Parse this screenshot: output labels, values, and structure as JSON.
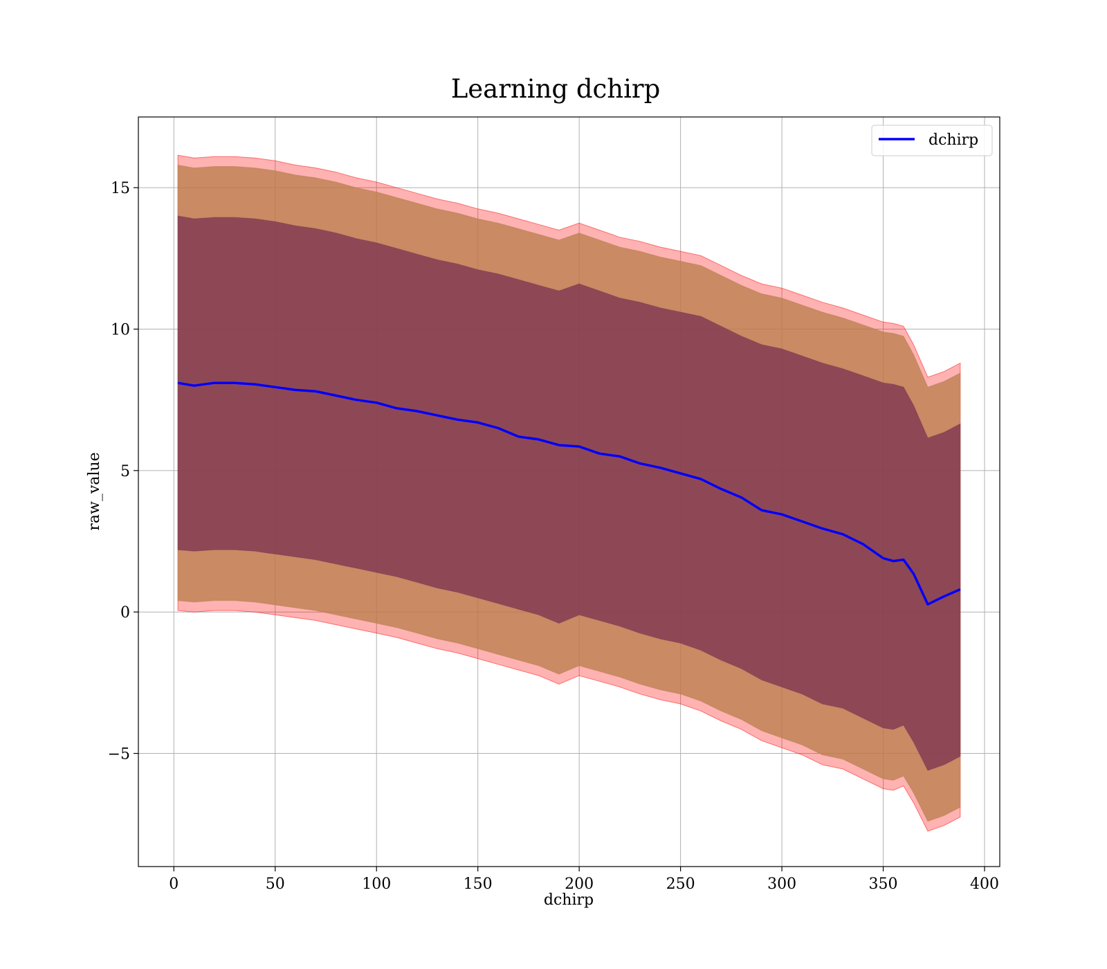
{
  "chart_data": {
    "type": "line",
    "title": "Learning dchirp",
    "xlabel": "dchirp",
    "ylabel": "raw_value",
    "xlim": [
      -17.5,
      407.5
    ],
    "ylim": [
      -9,
      17.5
    ],
    "xticks": [
      0,
      50,
      100,
      150,
      200,
      250,
      300,
      350,
      400
    ],
    "xtick_labels": [
      "0",
      "50",
      "100",
      "150",
      "200",
      "250",
      "300",
      "350",
      "400"
    ],
    "yticks": [
      -5,
      0,
      5,
      10,
      15
    ],
    "ytick_labels": [
      "−5",
      "0",
      "5",
      "10",
      "15"
    ],
    "grid": true,
    "legend": {
      "position": "top-right",
      "entries": [
        "dchirp"
      ]
    },
    "colors": {
      "mean_line": "#0000ff",
      "band_3sigma": "#ff0000",
      "band_2sigma": "#bc7f50",
      "band_1sigma": "#7a3150"
    },
    "series": [
      {
        "name": "dchirp",
        "x": [
          2,
          10,
          20,
          30,
          40,
          50,
          60,
          70,
          80,
          90,
          100,
          110,
          120,
          130,
          140,
          150,
          160,
          170,
          180,
          190,
          200,
          210,
          220,
          230,
          240,
          250,
          260,
          270,
          280,
          290,
          300,
          310,
          320,
          330,
          340,
          350,
          355,
          360,
          365,
          372,
          380,
          388
        ],
        "y": [
          8.1,
          8.0,
          8.1,
          8.1,
          8.05,
          7.95,
          7.85,
          7.8,
          7.65,
          7.5,
          7.4,
          7.2,
          7.1,
          6.95,
          6.8,
          6.7,
          6.5,
          6.2,
          6.1,
          5.9,
          5.85,
          5.6,
          5.5,
          5.25,
          5.1,
          4.9,
          4.7,
          4.35,
          4.05,
          3.6,
          3.45,
          3.2,
          2.95,
          2.75,
          2.4,
          1.9,
          1.8,
          1.85,
          1.35,
          0.27,
          0.55,
          0.8
        ],
        "band_1sigma": {
          "upper": [
            14.0,
            13.9,
            13.95,
            13.95,
            13.9,
            13.8,
            13.65,
            13.55,
            13.4,
            13.2,
            13.05,
            12.85,
            12.65,
            12.45,
            12.3,
            12.1,
            11.95,
            11.75,
            11.55,
            11.35,
            11.6,
            11.35,
            11.1,
            10.95,
            10.75,
            10.6,
            10.45,
            10.1,
            9.75,
            9.45,
            9.3,
            9.05,
            8.8,
            8.6,
            8.35,
            8.1,
            8.05,
            7.95,
            7.3,
            6.15,
            6.35,
            6.65
          ],
          "lower": [
            2.2,
            2.15,
            2.2,
            2.2,
            2.15,
            2.05,
            1.95,
            1.85,
            1.7,
            1.55,
            1.4,
            1.25,
            1.05,
            0.85,
            0.7,
            0.5,
            0.3,
            0.1,
            -0.1,
            -0.4,
            -0.1,
            -0.3,
            -0.5,
            -0.75,
            -0.95,
            -1.1,
            -1.35,
            -1.7,
            -2.0,
            -2.4,
            -2.65,
            -2.9,
            -3.25,
            -3.4,
            -3.75,
            -4.1,
            -4.15,
            -4.0,
            -4.6,
            -5.6,
            -5.4,
            -5.1
          ]
        },
        "band_2sigma": {
          "upper": [
            15.8,
            15.7,
            15.75,
            15.75,
            15.7,
            15.6,
            15.45,
            15.35,
            15.2,
            15.0,
            14.85,
            14.65,
            14.45,
            14.25,
            14.1,
            13.9,
            13.75,
            13.55,
            13.35,
            13.15,
            13.4,
            13.15,
            12.9,
            12.75,
            12.55,
            12.4,
            12.25,
            11.9,
            11.55,
            11.25,
            11.1,
            10.85,
            10.6,
            10.4,
            10.15,
            9.9,
            9.85,
            9.75,
            9.1,
            7.95,
            8.15,
            8.45
          ],
          "lower": [
            0.4,
            0.35,
            0.4,
            0.4,
            0.35,
            0.25,
            0.15,
            0.05,
            -0.1,
            -0.25,
            -0.4,
            -0.55,
            -0.75,
            -0.95,
            -1.1,
            -1.3,
            -1.5,
            -1.7,
            -1.9,
            -2.2,
            -1.9,
            -2.1,
            -2.3,
            -2.55,
            -2.75,
            -2.9,
            -3.15,
            -3.5,
            -3.8,
            -4.2,
            -4.45,
            -4.7,
            -5.05,
            -5.2,
            -5.55,
            -5.9,
            -5.95,
            -5.8,
            -6.4,
            -7.4,
            -7.2,
            -6.9
          ]
        },
        "band_3sigma": {
          "upper": [
            16.15,
            16.05,
            16.1,
            16.1,
            16.05,
            15.95,
            15.8,
            15.7,
            15.55,
            15.35,
            15.2,
            15.0,
            14.8,
            14.6,
            14.45,
            14.25,
            14.1,
            13.9,
            13.7,
            13.5,
            13.75,
            13.5,
            13.25,
            13.1,
            12.9,
            12.75,
            12.6,
            12.25,
            11.9,
            11.6,
            11.45,
            11.2,
            10.95,
            10.75,
            10.5,
            10.25,
            10.2,
            10.1,
            9.45,
            8.3,
            8.5,
            8.8
          ],
          "lower": [
            0.05,
            0.0,
            0.05,
            0.05,
            0.0,
            -0.1,
            -0.2,
            -0.3,
            -0.45,
            -0.6,
            -0.75,
            -0.9,
            -1.1,
            -1.3,
            -1.45,
            -1.65,
            -1.85,
            -2.05,
            -2.25,
            -2.55,
            -2.25,
            -2.45,
            -2.65,
            -2.9,
            -3.1,
            -3.25,
            -3.5,
            -3.85,
            -4.15,
            -4.55,
            -4.8,
            -5.05,
            -5.4,
            -5.55,
            -5.9,
            -6.25,
            -6.3,
            -6.15,
            -6.75,
            -7.75,
            -7.55,
            -7.25
          ]
        }
      }
    ]
  }
}
